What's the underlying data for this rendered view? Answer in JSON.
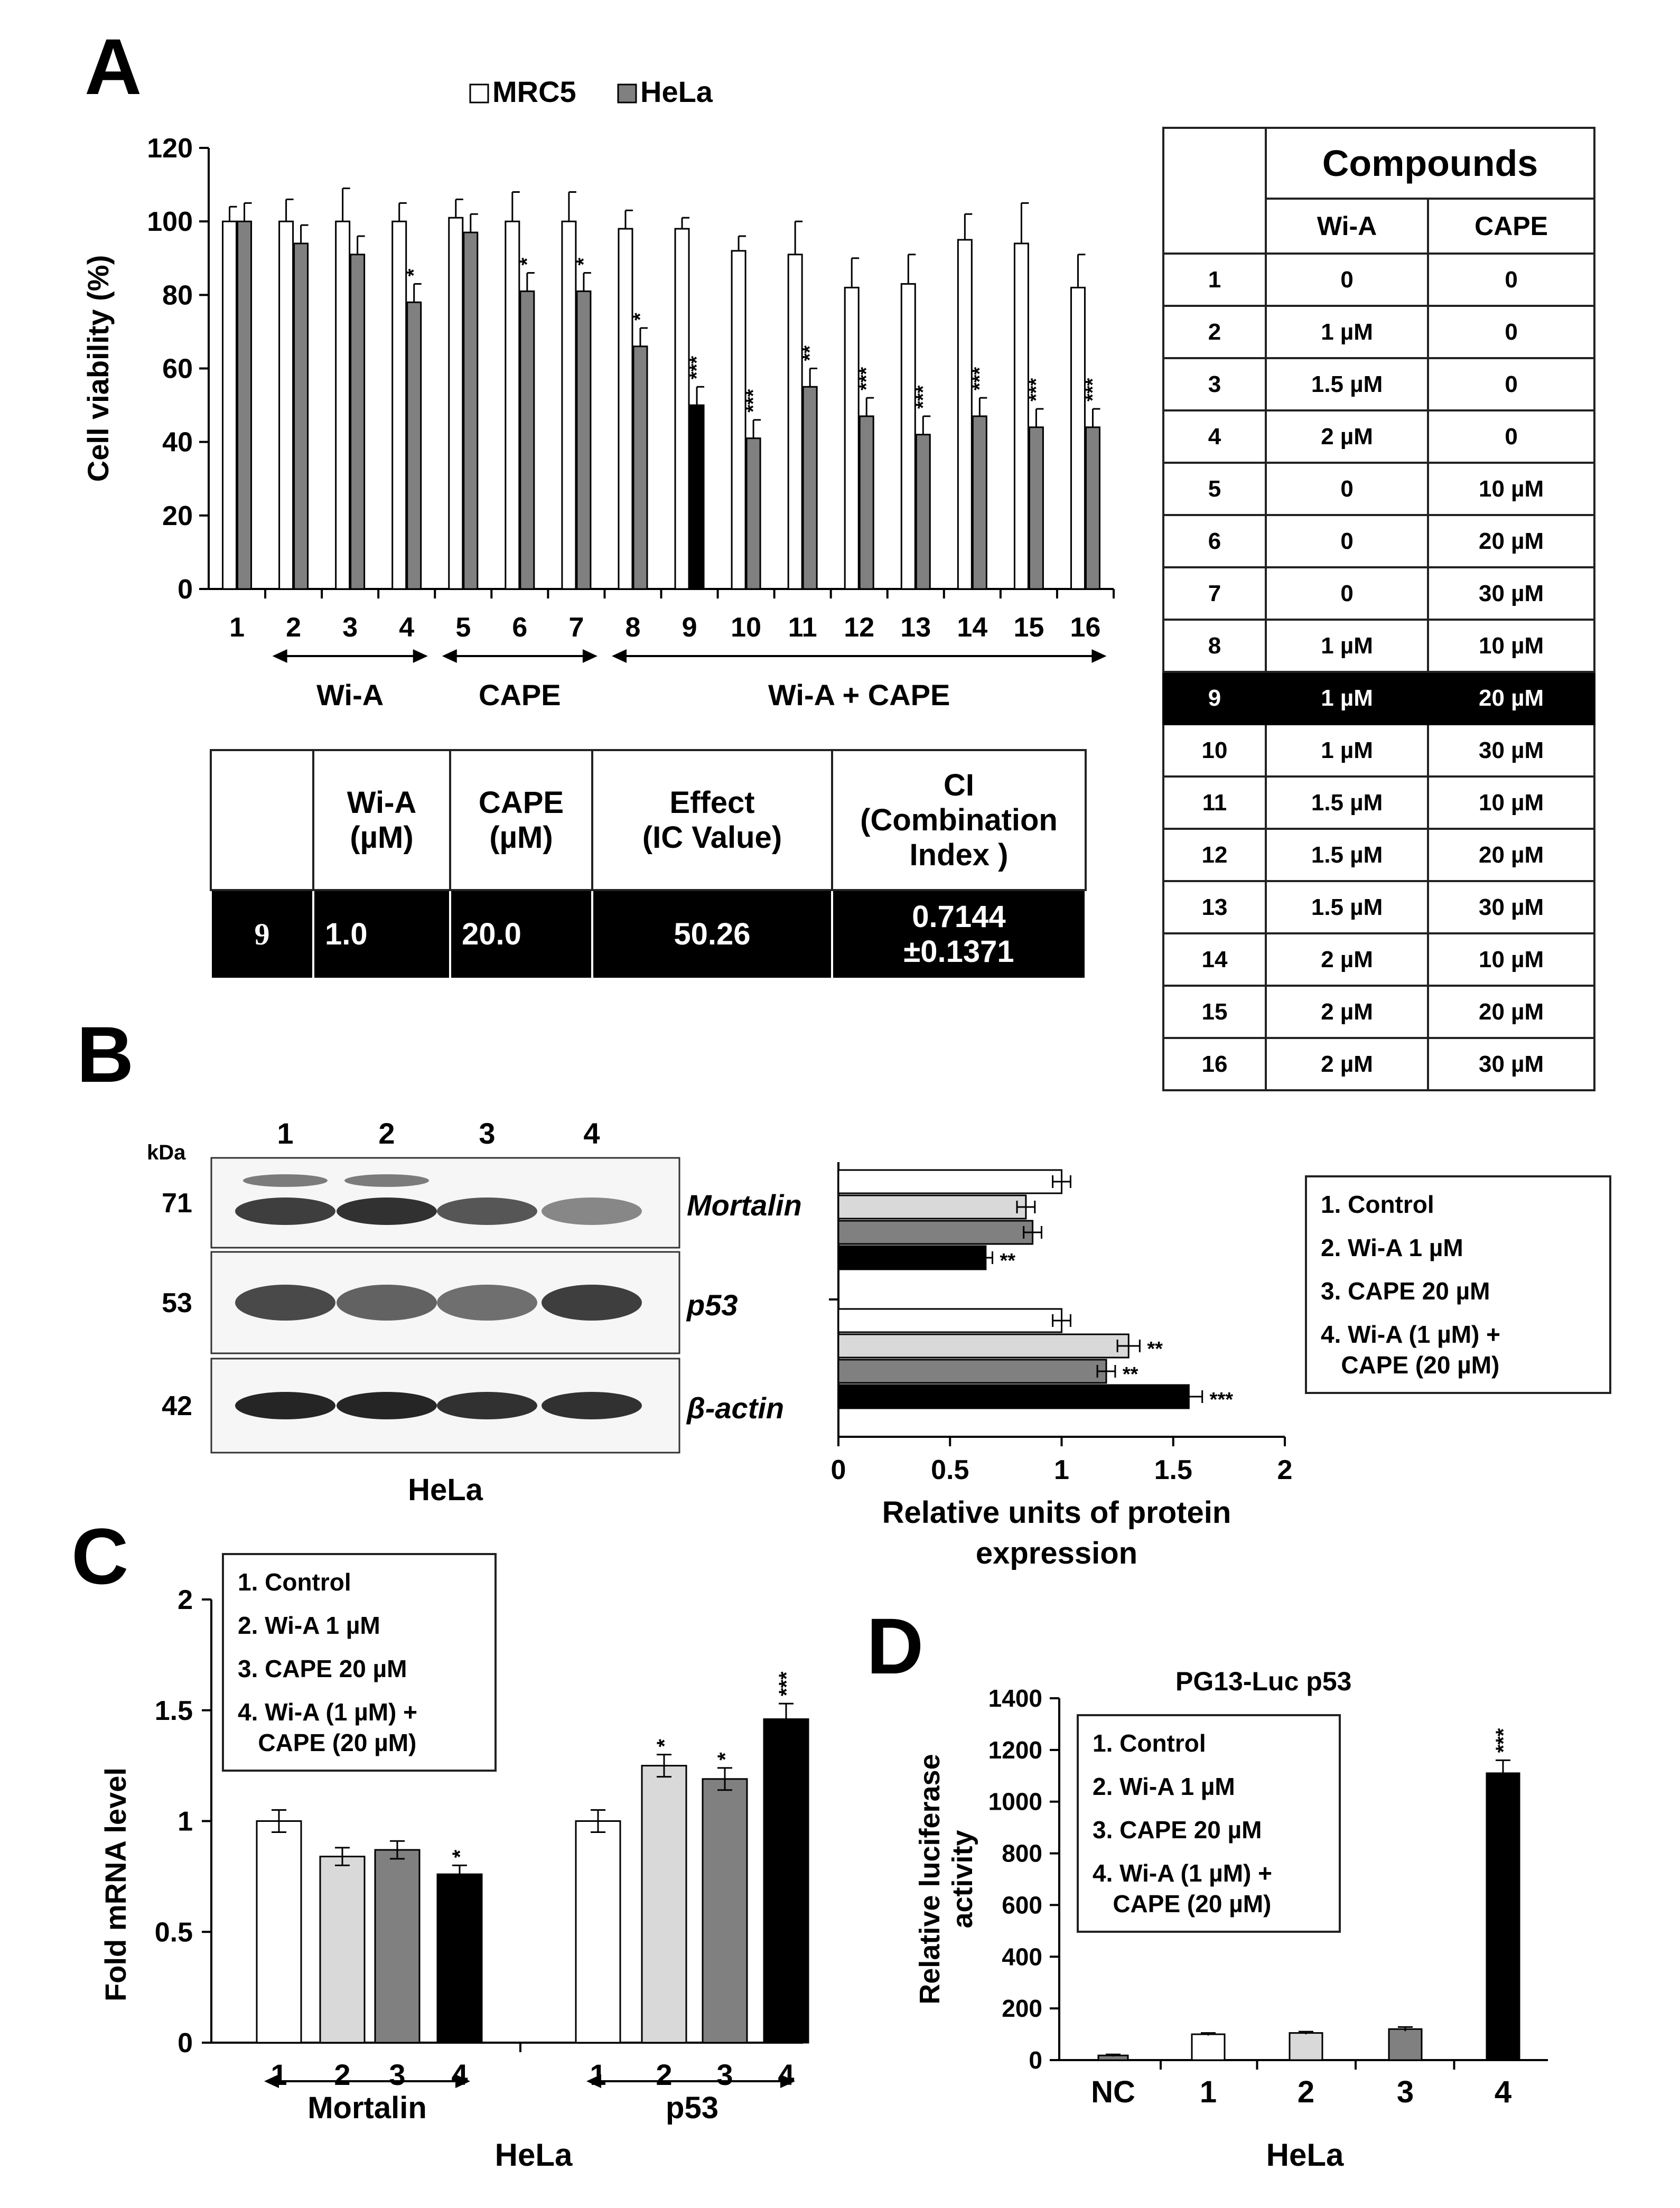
{
  "panel_labels": [
    "A",
    "B",
    "C",
    "D"
  ],
  "panel_a": {
    "legend": [
      "MRC5",
      "HeLa"
    ],
    "ylabel": "Cell viability (%)",
    "yticks": [
      "0",
      "20",
      "40",
      "60",
      "80",
      "100",
      "120"
    ],
    "groups": [
      "Wi-A",
      "CAPE",
      "Wi-A + CAPE"
    ]
  },
  "compounds_table": {
    "title": "Compounds",
    "col_headers": [
      "Wi-A",
      "CAPE"
    ],
    "rows": [
      [
        "1",
        "0",
        "0"
      ],
      [
        "2",
        "1 µM",
        "0"
      ],
      [
        "3",
        "1.5 µM",
        "0"
      ],
      [
        "4",
        "2 µM",
        "0"
      ],
      [
        "5",
        "0",
        "10 µM"
      ],
      [
        "6",
        "0",
        "20 µM"
      ],
      [
        "7",
        "0",
        "30 µM"
      ],
      [
        "8",
        "1 µM",
        "10 µM"
      ],
      [
        "9",
        "1 µM",
        "20 µM"
      ],
      [
        "10",
        "1 µM",
        "30 µM"
      ],
      [
        "11",
        "1.5 µM",
        "10 µM"
      ],
      [
        "12",
        "1.5 µM",
        "20 µM"
      ],
      [
        "13",
        "1.5 µM",
        "30 µM"
      ],
      [
        "14",
        "2 µM",
        "10 µM"
      ],
      [
        "15",
        "2 µM",
        "20 µM"
      ],
      [
        "16",
        "2 µM",
        "30 µM"
      ]
    ]
  },
  "ci_table": {
    "h1": "Wi-A",
    "h1b": "(µM)",
    "h2": "CAPE",
    "h2b": "(µM)",
    "h3": "Effect",
    "h3b": "(IC Value)",
    "h4": "CI",
    "h4b": "(Combination",
    "h4c": "Index )",
    "v0": "9",
    "v1": "1.0",
    "v2": "20.0",
    "v3": "50.26",
    "v4": "0.7144",
    "v4b": "±0.1371"
  },
  "panel_b": {
    "kda": "kDa",
    "lanes": [
      "1",
      "2",
      "3",
      "4"
    ],
    "bands": [
      {
        "mw": "71",
        "name": "Mortalin"
      },
      {
        "mw": "53",
        "name": "p53"
      },
      {
        "mw": "42",
        "name": "β-actin"
      }
    ],
    "cell": "HeLa",
    "xlabel": "Relative units of protein",
    "xlabel2": "expression",
    "xticks": [
      "0",
      "0.5",
      "1",
      "1.5",
      "2"
    ]
  },
  "legend_items": [
    "1. Control",
    "2. Wi-A 1 µM",
    "3. CAPE 20 µM",
    "4. Wi-A (1 µM) +",
    "   CAPE (20 µM)"
  ],
  "panel_c": {
    "ylabel": "Fold mRNA level",
    "yticks": [
      "0",
      "0.5",
      "1",
      "1.5",
      "2"
    ],
    "groups": [
      "Mortalin",
      "p53"
    ],
    "cell": "HeLa"
  },
  "panel_d": {
    "title": "PG13-Luc p53",
    "ylabel": "Relative luciferase",
    "ylabel2": "activity",
    "yticks": [
      "0",
      "200",
      "400",
      "600",
      "800",
      "1000",
      "1200",
      "1400"
    ],
    "cell": "HeLa"
  },
  "colors": {
    "c1": "#ffffff",
    "c2": "#d9d9d9",
    "c3": "#808080",
    "c4": "#000000"
  },
  "chart_data": [
    {
      "type": "bar",
      "id": "A",
      "categories": [
        "1",
        "2",
        "3",
        "4",
        "5",
        "6",
        "7",
        "8",
        "9",
        "10",
        "11",
        "12",
        "13",
        "14",
        "15",
        "16"
      ],
      "ylim": [
        0,
        120
      ],
      "series": [
        {
          "name": "MRC5",
          "values": [
            100,
            100,
            100,
            100,
            101,
            100,
            100,
            98,
            98,
            92,
            91,
            82,
            83,
            95,
            94,
            82
          ],
          "err": [
            4,
            6,
            9,
            5,
            5,
            8,
            8,
            5,
            3,
            4,
            9,
            8,
            8,
            7,
            11,
            9
          ]
        },
        {
          "name": "HeLa",
          "values": [
            100,
            94,
            91,
            78,
            97,
            81,
            81,
            66,
            50,
            41,
            55,
            47,
            42,
            47,
            44,
            44
          ],
          "err": [
            5,
            5,
            5,
            5,
            5,
            5,
            5,
            5,
            5,
            5,
            5,
            5,
            5,
            5,
            5,
            5
          ],
          "sig": [
            "",
            "",
            "",
            "*",
            "",
            "*",
            "*",
            "*",
            "***",
            "***",
            "**",
            "***",
            "***",
            "***",
            "***",
            "***"
          ]
        }
      ],
      "ylabel": "Cell viability (%)"
    },
    {
      "type": "bar",
      "id": "B",
      "orientation": "horizontal",
      "categories": [
        "Mortalin",
        "p53"
      ],
      "xlim": [
        0,
        2
      ],
      "series": [
        {
          "name": "1",
          "values": [
            1.0,
            1.0
          ],
          "err": [
            0.04,
            0.04
          ],
          "sig": [
            "",
            ""
          ]
        },
        {
          "name": "2",
          "values": [
            0.84,
            1.3
          ],
          "err": [
            0.04,
            0.05
          ],
          "sig": [
            "",
            "**"
          ]
        },
        {
          "name": "3",
          "values": [
            0.87,
            1.2
          ],
          "err": [
            0.04,
            0.04
          ],
          "sig": [
            "",
            "**"
          ]
        },
        {
          "name": "4",
          "values": [
            0.66,
            1.57
          ],
          "err": [
            0.03,
            0.06
          ],
          "sig": [
            "**",
            "***"
          ]
        }
      ],
      "xlabel": "Relative units of protein expression"
    },
    {
      "type": "bar",
      "id": "C",
      "categories": [
        "Mortalin",
        "p53"
      ],
      "ylim": [
        0,
        2
      ],
      "series": [
        {
          "name": "1",
          "values": [
            1.0,
            1.0
          ],
          "err": [
            0.05,
            0.05
          ],
          "sig": [
            "",
            ""
          ]
        },
        {
          "name": "2",
          "values": [
            0.84,
            1.25
          ],
          "err": [
            0.04,
            0.05
          ],
          "sig": [
            "",
            "*"
          ]
        },
        {
          "name": "3",
          "values": [
            0.87,
            1.19
          ],
          "err": [
            0.04,
            0.05
          ],
          "sig": [
            "",
            "*"
          ]
        },
        {
          "name": "4",
          "values": [
            0.76,
            1.46
          ],
          "err": [
            0.04,
            0.07
          ],
          "sig": [
            "*",
            "***"
          ]
        }
      ],
      "ylabel": "Fold mRNA level"
    },
    {
      "type": "bar",
      "id": "D",
      "title": "PG13-Luc p53",
      "categories": [
        "NC",
        "1",
        "2",
        "3",
        "4"
      ],
      "values": [
        18,
        100,
        105,
        120,
        1110
      ],
      "err": [
        4,
        5,
        5,
        8,
        50
      ],
      "sig": [
        "",
        "",
        "",
        "",
        "***"
      ],
      "ylim": [
        0,
        1400
      ],
      "ylabel": "Relative luciferase activity"
    }
  ]
}
